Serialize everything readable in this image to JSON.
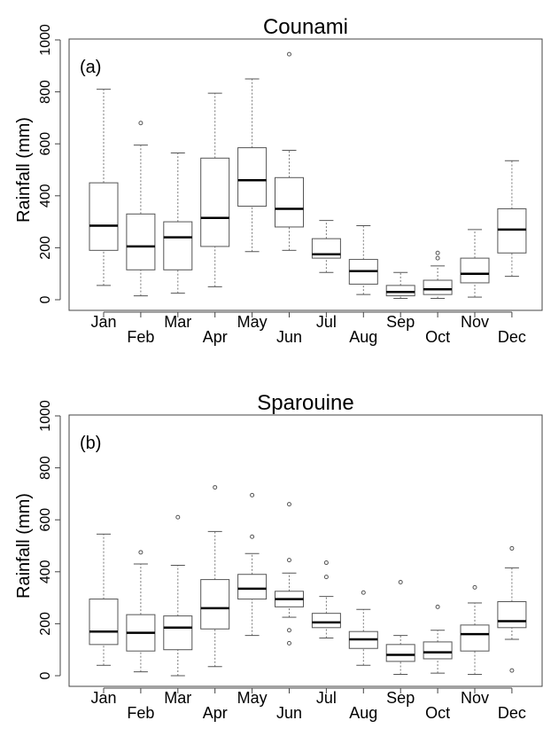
{
  "chart_data": [
    {
      "type": "box",
      "title": "Counami",
      "panel_label": "(a)",
      "y_label": "Rainfall (mm)",
      "categories": [
        "Jan",
        "Feb",
        "Mar",
        "Apr",
        "May",
        "Jun",
        "Jul",
        "Aug",
        "Sep",
        "Oct",
        "Nov",
        "Dec"
      ],
      "whisker_low": [
        55,
        15,
        25,
        50,
        185,
        190,
        105,
        20,
        5,
        5,
        10,
        90
      ],
      "q1": [
        190,
        115,
        115,
        205,
        360,
        280,
        160,
        60,
        15,
        20,
        65,
        180
      ],
      "median": [
        285,
        205,
        240,
        315,
        460,
        350,
        175,
        110,
        30,
        40,
        100,
        270
      ],
      "q3": [
        450,
        330,
        300,
        545,
        585,
        470,
        235,
        155,
        55,
        75,
        160,
        350
      ],
      "whisker_high": [
        810,
        595,
        565,
        795,
        850,
        575,
        305,
        285,
        105,
        130,
        270,
        535
      ],
      "outliers": [
        [],
        [
          680
        ],
        [],
        [],
        [],
        [
          945
        ],
        [],
        [],
        [],
        [
          160,
          180
        ],
        [],
        []
      ],
      "color": "#555555",
      "ylim": [
        0,
        1000
      ],
      "yticks": [
        0,
        200,
        400,
        600,
        800,
        1000
      ]
    },
    {
      "type": "box",
      "title": "Sparouine",
      "panel_label": "(b)",
      "y_label": "Rainfall (mm)",
      "categories": [
        "Jan",
        "Feb",
        "Mar",
        "Apr",
        "May",
        "Jun",
        "Jul",
        "Aug",
        "Sep",
        "Oct",
        "Nov",
        "Dec"
      ],
      "whisker_low": [
        40,
        15,
        0,
        35,
        155,
        225,
        145,
        40,
        5,
        10,
        5,
        140
      ],
      "q1": [
        120,
        95,
        100,
        180,
        295,
        265,
        185,
        105,
        55,
        65,
        95,
        185
      ],
      "median": [
        170,
        165,
        185,
        260,
        335,
        295,
        205,
        140,
        80,
        90,
        160,
        210
      ],
      "q3": [
        295,
        235,
        230,
        370,
        390,
        325,
        240,
        170,
        120,
        130,
        195,
        285
      ],
      "whisker_high": [
        545,
        430,
        425,
        555,
        470,
        395,
        305,
        255,
        155,
        175,
        280,
        415
      ],
      "outliers": [
        [],
        [
          475
        ],
        [
          610
        ],
        [
          725
        ],
        [
          535,
          695
        ],
        [
          445,
          660,
          175,
          125
        ],
        [
          380,
          435
        ],
        [
          320
        ],
        [
          360
        ],
        [
          265
        ],
        [
          340
        ],
        [
          490,
          20
        ]
      ],
      "color": "#555555",
      "ylim": [
        0,
        1000
      ],
      "yticks": [
        0,
        200,
        400,
        600,
        800,
        1000
      ]
    }
  ]
}
